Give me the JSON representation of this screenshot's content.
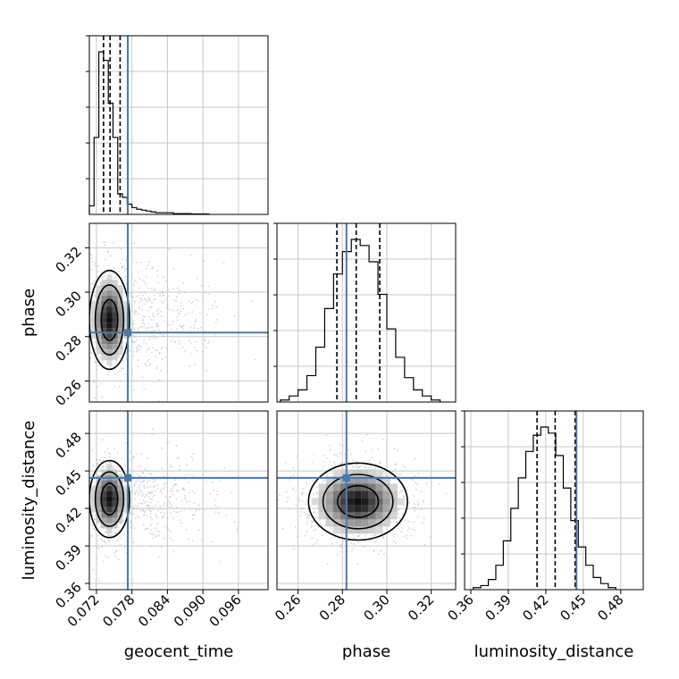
{
  "chart_data": {
    "type": "corner",
    "parameters": [
      "geocent_time",
      "phase",
      "luminosity_distance"
    ],
    "ticks": {
      "geocent_time": [
        "0.072",
        "0.078",
        "0.084",
        "0.090",
        "0.096"
      ],
      "phase": [
        "0.26",
        "0.28",
        "0.30",
        "0.32"
      ],
      "luminosity_distance": [
        "0.36",
        "0.39",
        "0.42",
        "0.45",
        "0.48"
      ]
    },
    "ranges": {
      "geocent_time": [
        0.0708,
        0.101
      ],
      "phase": [
        0.2505,
        0.331
      ],
      "luminosity_distance": [
        0.355,
        0.498
      ]
    },
    "injection": {
      "geocent_time": 0.0773,
      "phase": 0.2818,
      "luminosity_distance": 0.4445
    },
    "quantiles": {
      "geocent_time": [
        0.0732,
        0.0743,
        0.076
      ],
      "phase": [
        0.2775,
        0.2862,
        0.2968
      ],
      "luminosity_distance": [
        0.413,
        0.4275,
        0.4435
      ]
    },
    "histograms": {
      "geocent_time": {
        "edges": [
          0.0708,
          0.0716,
          0.0724,
          0.0732,
          0.074,
          0.0748,
          0.0756,
          0.0764,
          0.0772,
          0.078,
          0.0788,
          0.0796,
          0.0804,
          0.0812,
          0.082,
          0.085,
          0.088,
          0.091
        ],
        "counts": [
          0.05,
          0.45,
          0.95,
          0.9,
          0.65,
          0.45,
          0.12,
          0.1,
          0.06,
          0.04,
          0.03,
          0.025,
          0.02,
          0.015,
          0.01,
          0.005,
          0.003
        ]
      },
      "phase": {
        "edges": [
          0.252,
          0.256,
          0.26,
          0.264,
          0.268,
          0.272,
          0.276,
          0.28,
          0.284,
          0.288,
          0.292,
          0.296,
          0.3,
          0.304,
          0.308,
          0.312,
          0.316,
          0.32,
          0.324
        ],
        "counts": [
          0.01,
          0.03,
          0.06,
          0.13,
          0.27,
          0.46,
          0.63,
          0.74,
          0.8,
          0.77,
          0.69,
          0.53,
          0.36,
          0.22,
          0.12,
          0.06,
          0.03,
          0.01
        ]
      },
      "luminosity_distance": {
        "edges": [
          0.362,
          0.368,
          0.374,
          0.38,
          0.386,
          0.392,
          0.398,
          0.404,
          0.41,
          0.416,
          0.422,
          0.428,
          0.434,
          0.44,
          0.446,
          0.452,
          0.458,
          0.464,
          0.47,
          0.476
        ],
        "counts": [
          0.01,
          0.02,
          0.05,
          0.12,
          0.24,
          0.4,
          0.55,
          0.68,
          0.76,
          0.8,
          0.77,
          0.66,
          0.5,
          0.34,
          0.21,
          0.12,
          0.06,
          0.03,
          0.01
        ]
      }
    },
    "density_centers": {
      "geocent_time|phase": [
        0.0742,
        0.2875
      ],
      "geocent_time|luminosity_distance": [
        0.0742,
        0.4275
      ],
      "phase|luminosity_distance": [
        0.287,
        0.4255
      ]
    },
    "grid": true,
    "colors": {
      "injection": "#4878a8",
      "histogram": "#000000",
      "quantile": "#000000",
      "samples": "#b0b0b0",
      "grid": "#c8c8c8"
    }
  }
}
